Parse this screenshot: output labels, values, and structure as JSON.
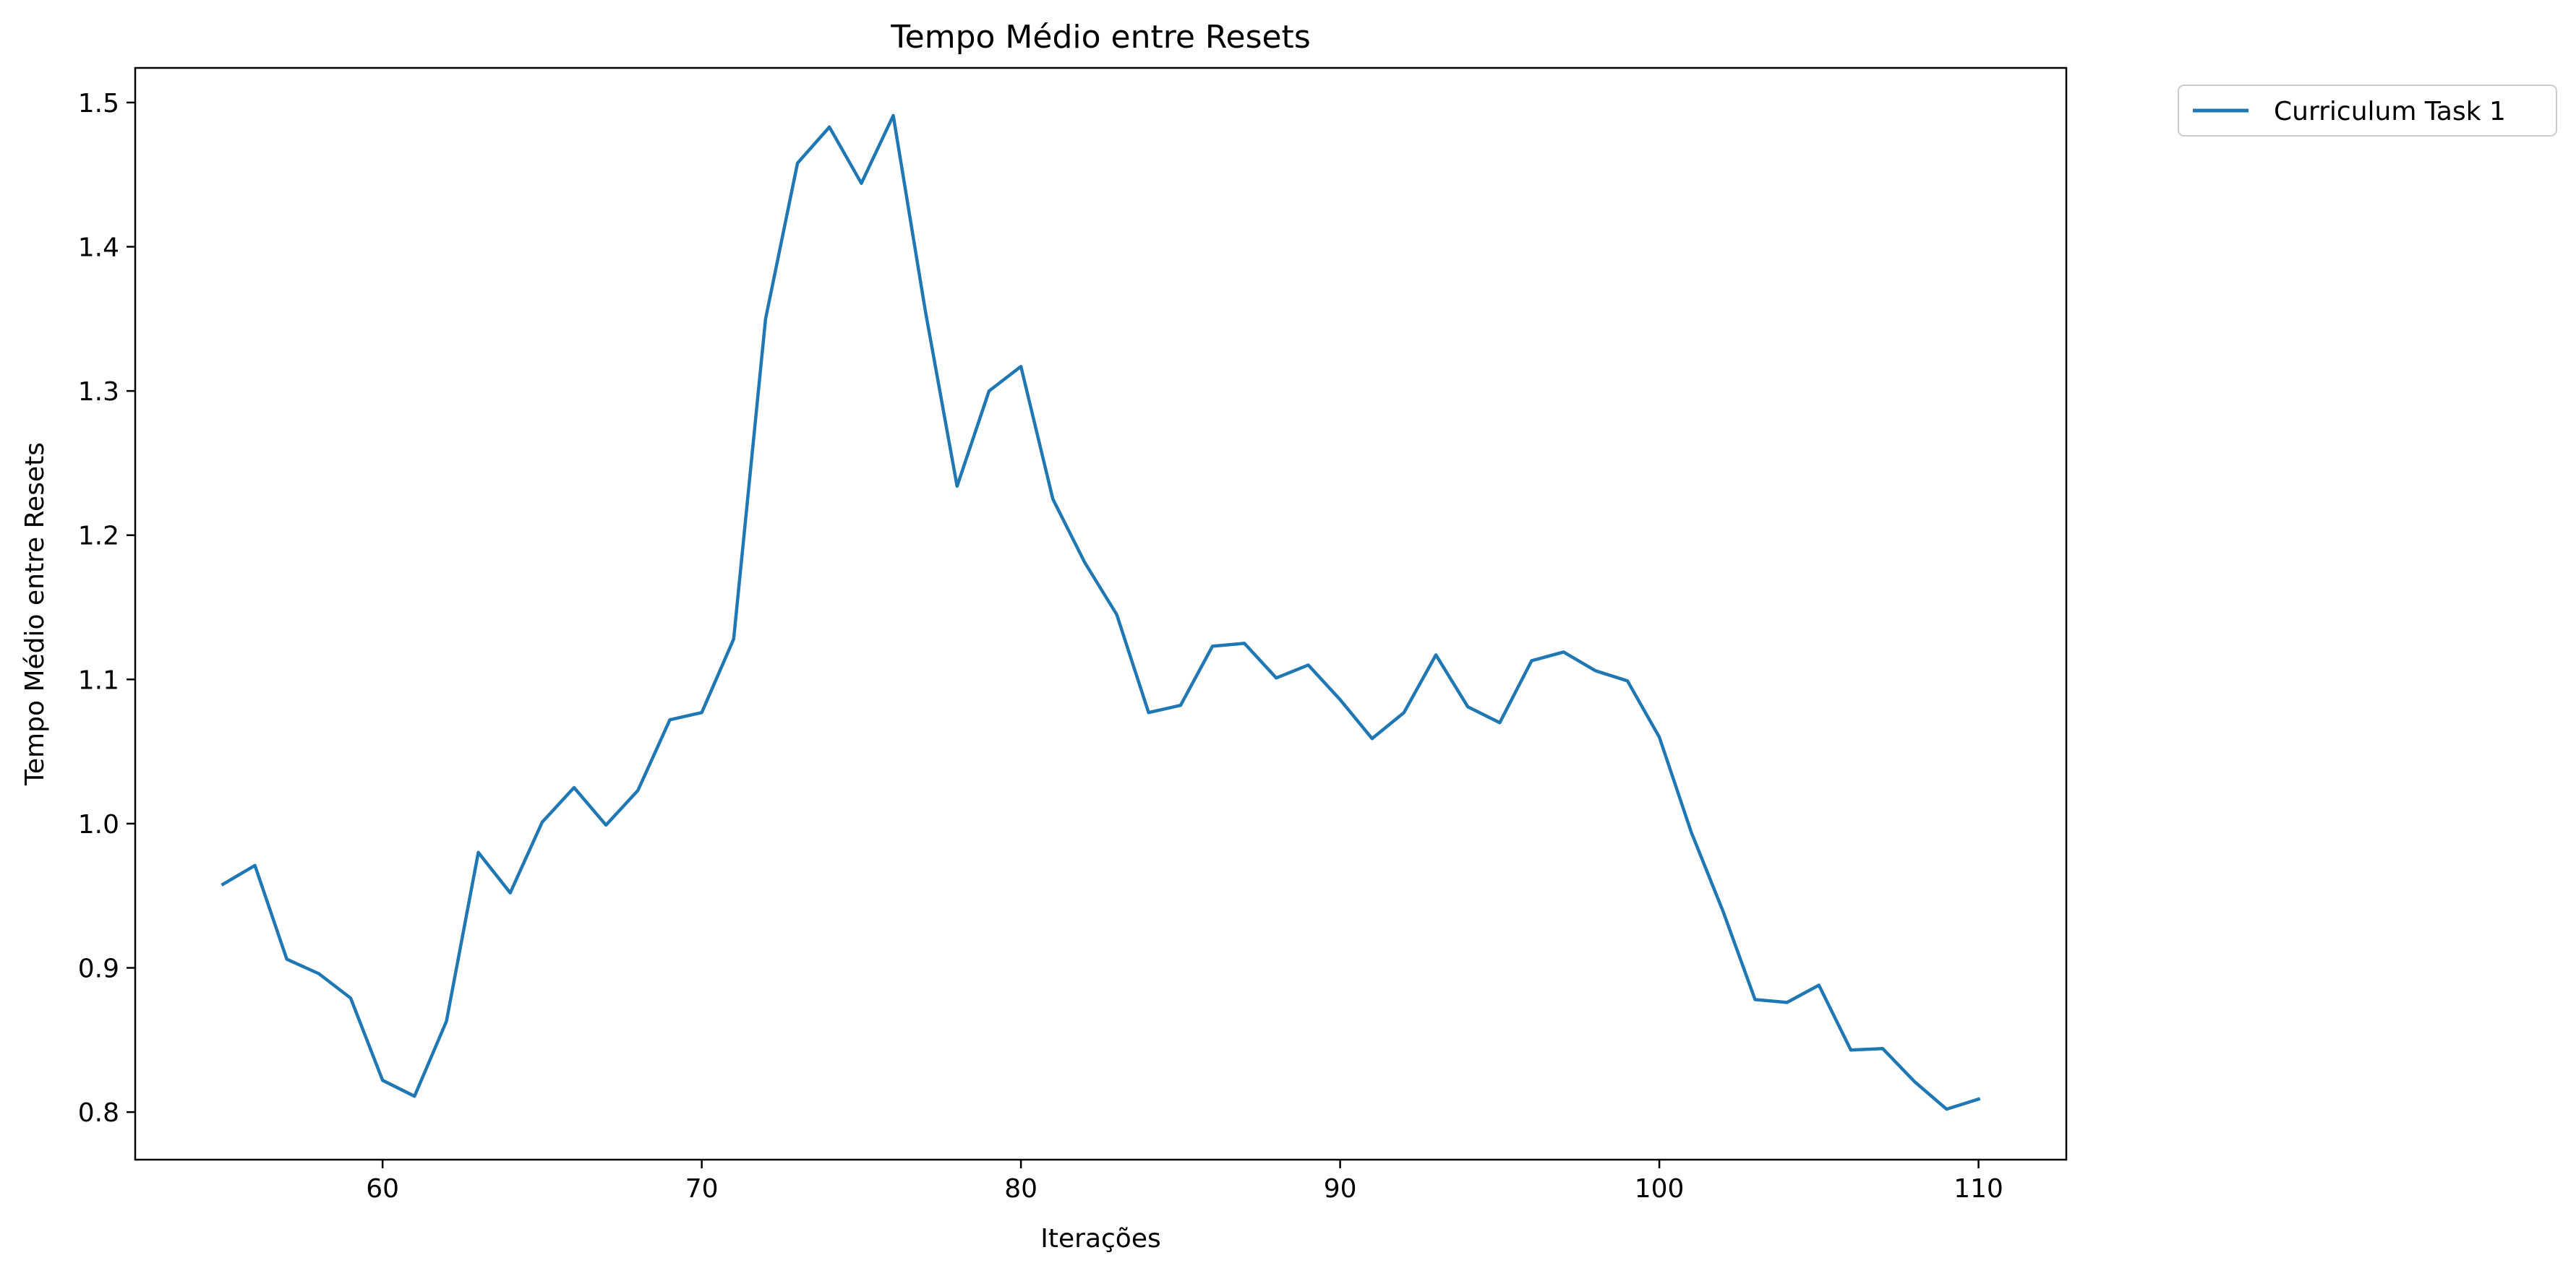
{
  "chart_data": {
    "type": "line",
    "title": "Tempo Médio entre Resets",
    "xlabel": "Iterações",
    "ylabel": "Tempo Médio entre Resets",
    "xlim": [
      52.25,
      112.75
    ],
    "ylim": [
      0.767,
      1.524
    ],
    "xticks": [
      60,
      70,
      80,
      90,
      100,
      110
    ],
    "yticks": [
      0.8,
      0.9,
      1.0,
      1.1,
      1.2,
      1.3,
      1.4,
      1.5
    ],
    "ytick_labels": [
      "0.8",
      "0.9",
      "1.0",
      "1.1",
      "1.2",
      "1.3",
      "1.4",
      "1.5"
    ],
    "grid": false,
    "legend": "outside-top-right",
    "series": [
      {
        "name": "Curriculum Task 1",
        "color": "#1f77b4",
        "x": [
          55,
          56,
          57,
          58,
          59,
          60,
          61,
          62,
          63,
          64,
          65,
          66,
          67,
          68,
          69,
          70,
          71,
          72,
          73,
          74,
          75,
          76,
          77,
          78,
          79,
          80,
          81,
          82,
          83,
          84,
          85,
          86,
          87,
          88,
          89,
          90,
          91,
          92,
          93,
          94,
          95,
          96,
          97,
          98,
          99,
          100,
          101,
          102,
          103,
          104,
          105,
          106,
          107,
          108,
          109,
          110
        ],
        "y": [
          0.958,
          0.971,
          0.906,
          0.896,
          0.879,
          0.822,
          0.811,
          0.863,
          0.98,
          0.952,
          1.001,
          1.025,
          0.999,
          1.023,
          1.072,
          1.077,
          1.128,
          1.35,
          1.458,
          1.483,
          1.444,
          1.491,
          1.356,
          1.234,
          1.3,
          1.317,
          1.225,
          1.181,
          1.145,
          1.077,
          1.082,
          1.123,
          1.125,
          1.101,
          1.11,
          1.086,
          1.059,
          1.077,
          1.117,
          1.081,
          1.07,
          1.113,
          1.119,
          1.106,
          1.099,
          1.06,
          0.994,
          0.939,
          0.878,
          0.876,
          0.888,
          0.843,
          0.844,
          0.821,
          0.802,
          0.809
        ]
      }
    ]
  }
}
